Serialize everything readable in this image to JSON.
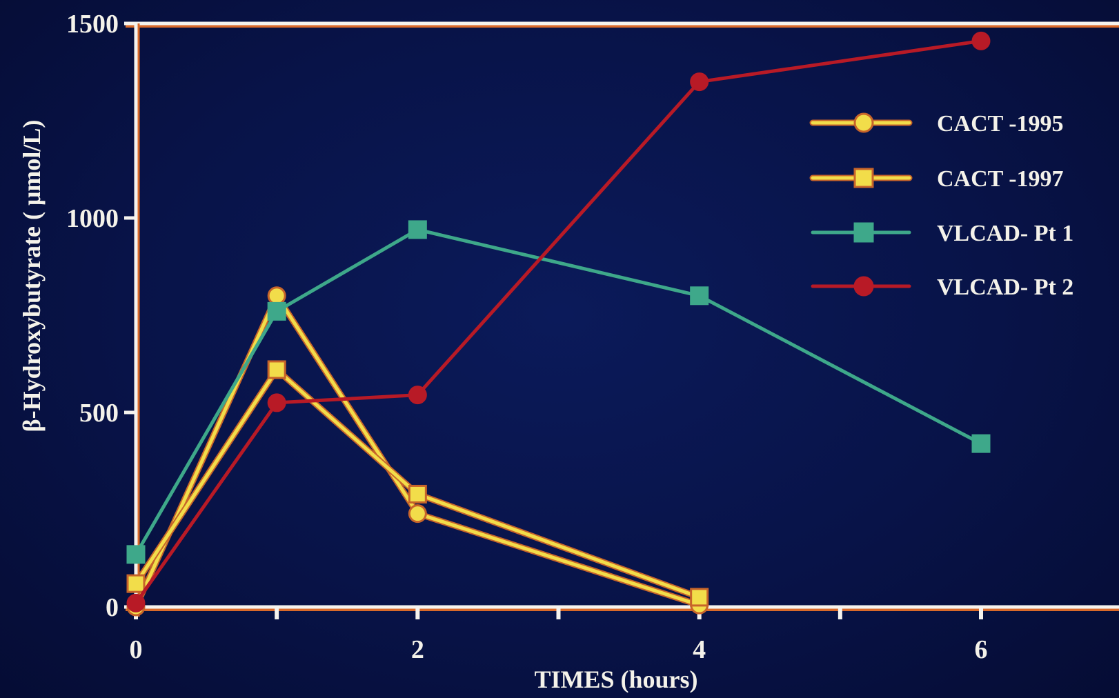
{
  "chart_data": {
    "type": "line",
    "title": "",
    "xlabel": "TIMES  (hours)",
    "ylabel": "β-Hydroxybutyrate (  μmol/L)",
    "xlim": [
      0,
      7
    ],
    "ylim": [
      0,
      1500
    ],
    "x_ticks": [
      0,
      1,
      2,
      3,
      4,
      5,
      6,
      7
    ],
    "x_tick_labels": [
      "0",
      "",
      "2",
      "",
      "4",
      "",
      "6",
      ""
    ],
    "y_ticks": [
      0,
      500,
      1000,
      1500
    ],
    "y_tick_labels": [
      "0",
      "500",
      "1000",
      "1500"
    ],
    "grid": false,
    "legend_position": "top-right",
    "series": [
      {
        "name": "CACT  -1995",
        "marker": "circle",
        "color": "#f2dd4a",
        "edge_color": "#c7642a",
        "x": [
          0,
          1,
          2,
          4
        ],
        "y": [
          0,
          800,
          240,
          5
        ]
      },
      {
        "name": "CACT  -1997",
        "marker": "square",
        "color": "#f2dd4a",
        "edge_color": "#c7642a",
        "x": [
          0,
          1,
          2,
          4
        ],
        "y": [
          60,
          610,
          290,
          25
        ]
      },
      {
        "name": "VLCAD-  Pt  1",
        "marker": "square",
        "color": "#3ea88a",
        "edge_color": "#3ea88a",
        "x": [
          0,
          1,
          2,
          4,
          6
        ],
        "y": [
          135,
          760,
          970,
          800,
          420
        ]
      },
      {
        "name": "VLCAD-  Pt  2",
        "marker": "circle",
        "color": "#b81a26",
        "edge_color": "#b81a26",
        "x": [
          0,
          1,
          2,
          4,
          6
        ],
        "y": [
          10,
          525,
          545,
          1350,
          1455
        ]
      }
    ]
  }
}
